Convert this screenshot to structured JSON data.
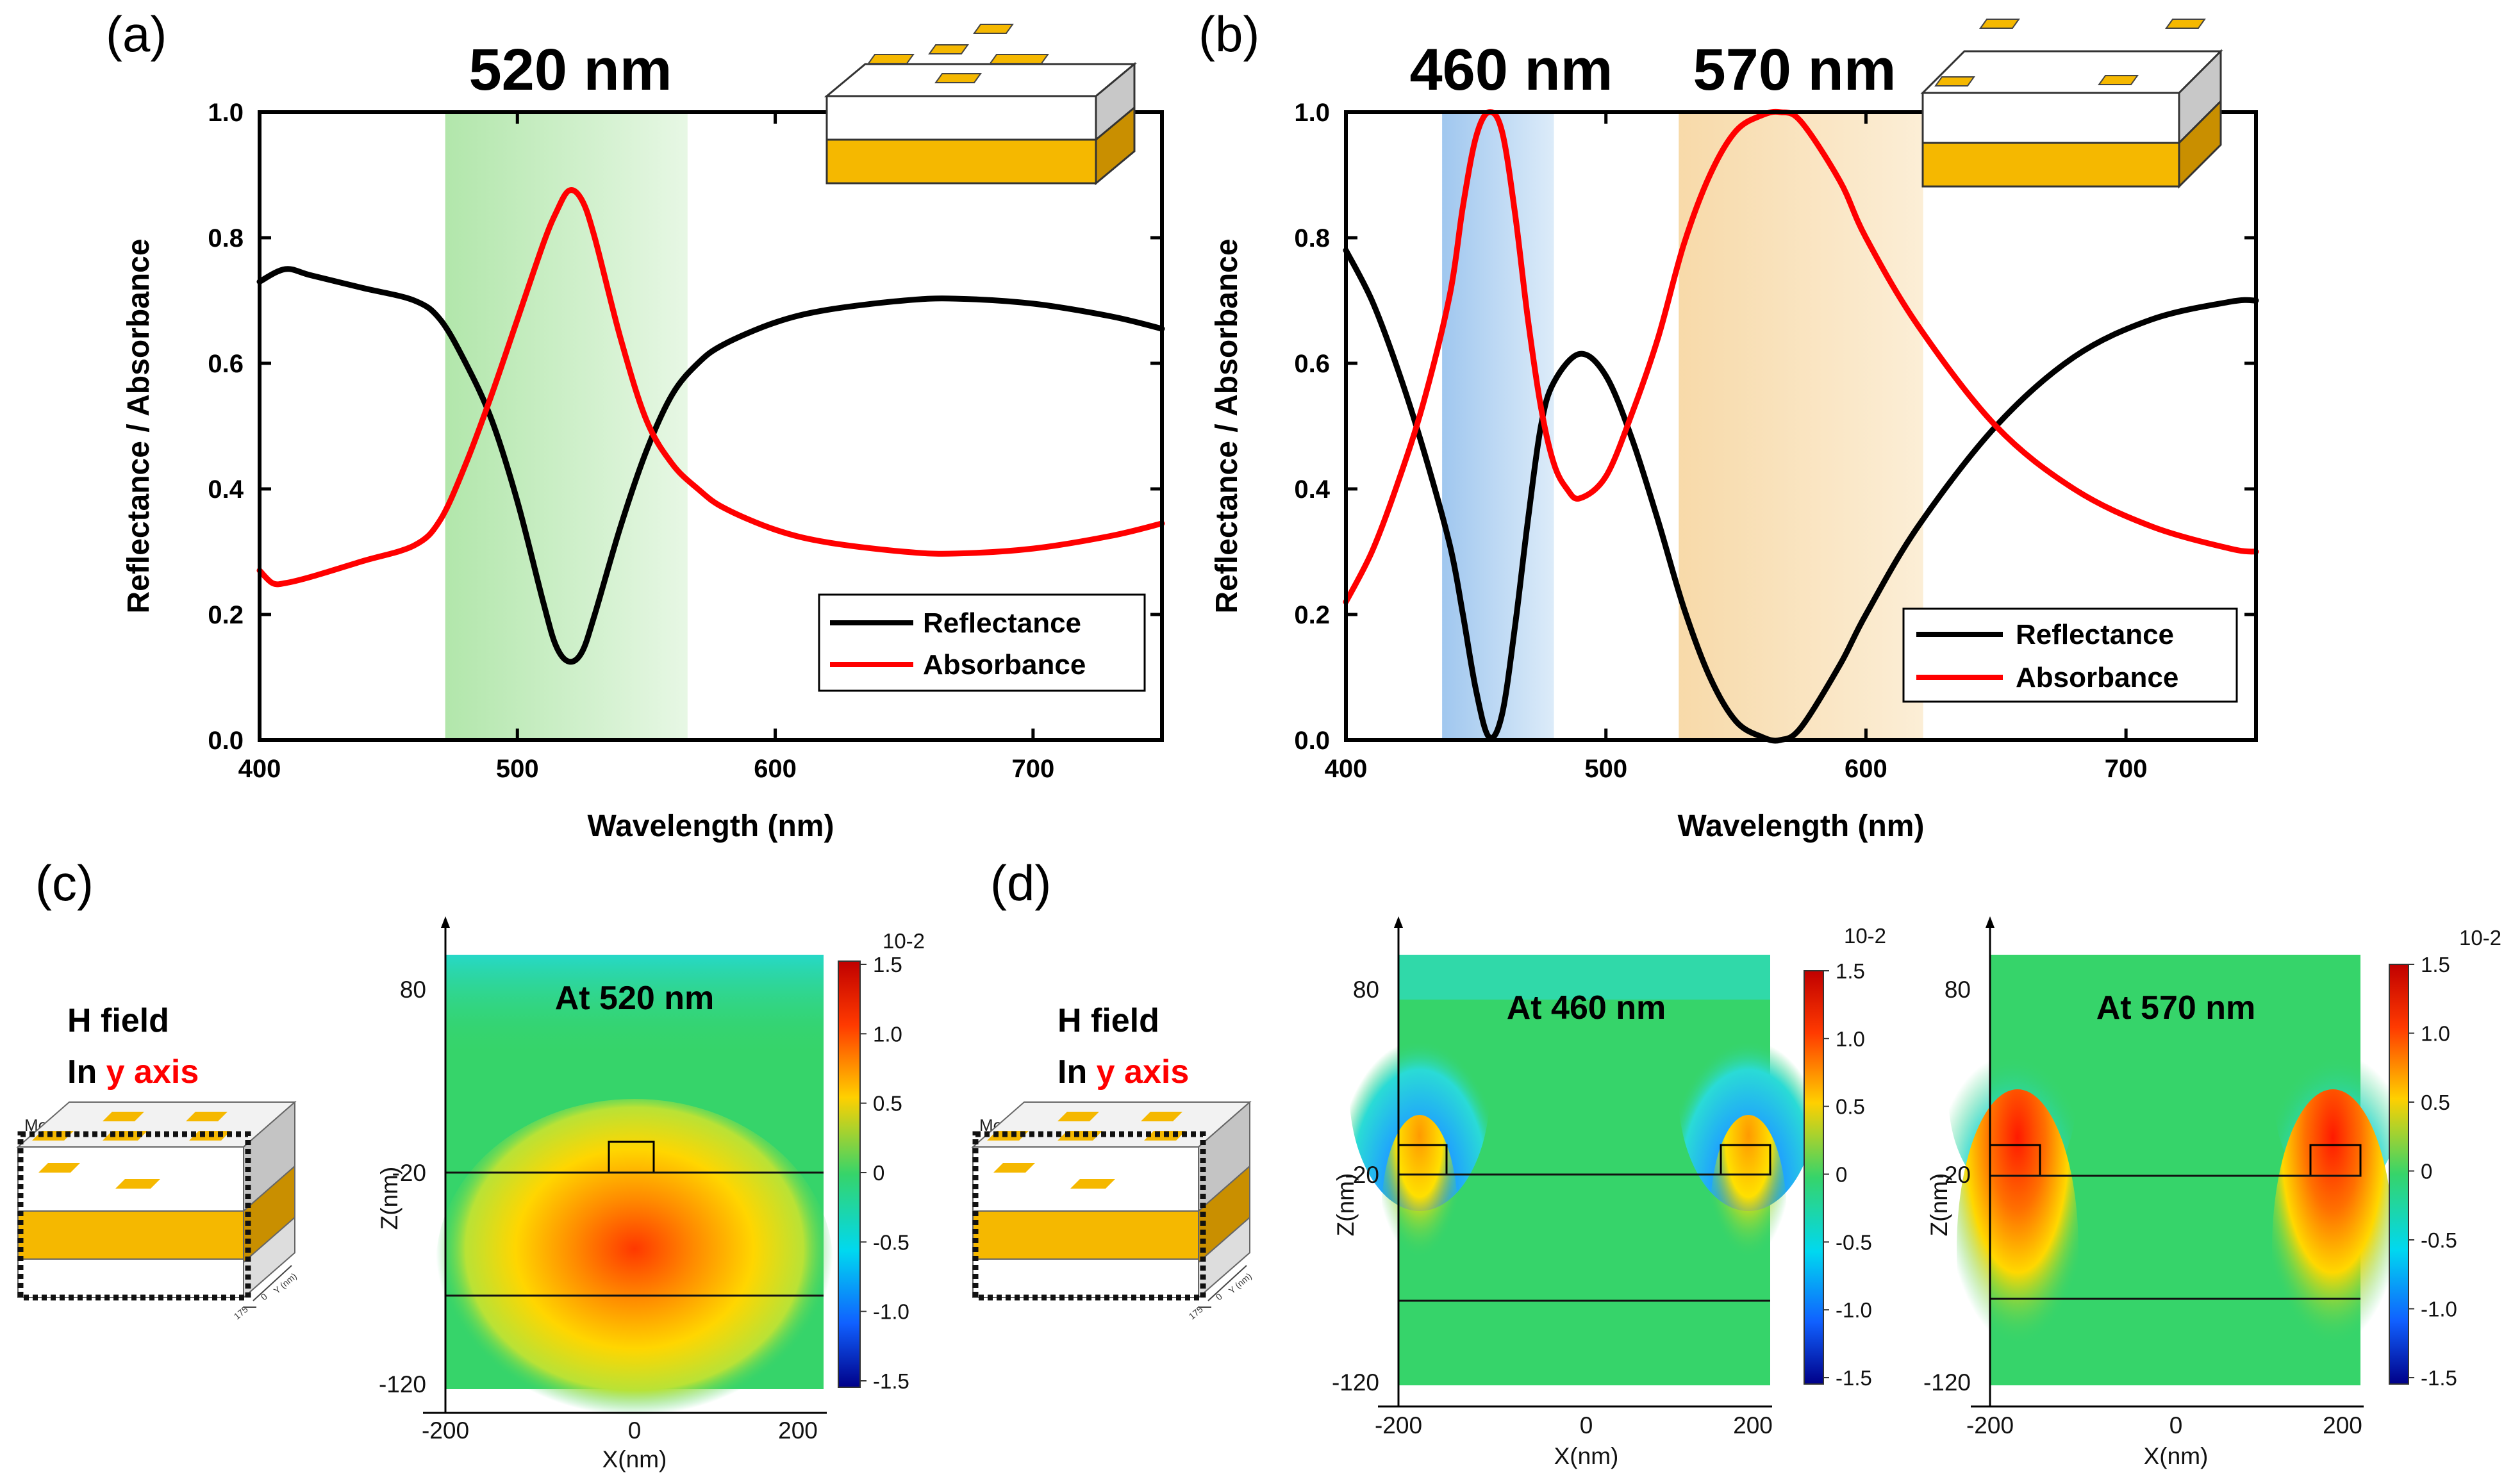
{
  "colors": {
    "reflectance": "#000000",
    "absorbance": "#ff0000",
    "green_band": "#b7e8b2",
    "blue_band": "#a9cdf0",
    "orange_band": "#f8dcaa",
    "gold": "#f5b800",
    "map_bg": "#35d46a"
  },
  "panels": {
    "a_label": "(a)",
    "b_label": "(b)",
    "c_label": "(c)",
    "d_label": "(d)"
  },
  "chart_data": [
    {
      "id": "a",
      "type": "line",
      "xlabel": "Wavelength (nm)",
      "ylabel": "Reflectance / Absorbance",
      "xlim": [
        400,
        750
      ],
      "ylim": [
        0.0,
        1.0
      ],
      "xticks": [
        400,
        500,
        600,
        700
      ],
      "xtick_labels": [
        "400",
        "500",
        "600",
        "700"
      ],
      "yticks": [
        0.0,
        0.2,
        0.4,
        0.6,
        0.8,
        1.0
      ],
      "ytick_labels": [
        "0.0",
        "0.2",
        "0.4",
        "0.6",
        "0.8",
        "1.0"
      ],
      "bands": [
        {
          "label": "520 nm",
          "from": 472,
          "to": 566,
          "color": "#b7e8b2"
        }
      ],
      "legend": {
        "position": "lower-right",
        "entries": [
          "Reflectance",
          "Absorbance"
        ]
      },
      "series": [
        {
          "name": "Reflectance",
          "color": "#000000",
          "x": [
            400,
            410,
            420,
            440,
            460,
            470,
            480,
            490,
            500,
            510,
            515,
            520,
            525,
            530,
            540,
            550,
            560,
            570,
            580,
            600,
            620,
            650,
            670,
            700,
            730,
            750
          ],
          "y": [
            0.73,
            0.75,
            0.74,
            0.72,
            0.7,
            0.67,
            0.6,
            0.51,
            0.38,
            0.22,
            0.15,
            0.125,
            0.14,
            0.2,
            0.34,
            0.46,
            0.55,
            0.6,
            0.63,
            0.665,
            0.685,
            0.7,
            0.703,
            0.695,
            0.675,
            0.655
          ]
        },
        {
          "name": "Absorbance",
          "color": "#ff0000",
          "x": [
            400,
            405,
            410,
            420,
            440,
            460,
            470,
            480,
            490,
            500,
            510,
            515,
            520,
            525,
            530,
            540,
            550,
            560,
            570,
            580,
            600,
            620,
            650,
            670,
            700,
            730,
            750
          ],
          "y": [
            0.27,
            0.25,
            0.25,
            0.26,
            0.285,
            0.31,
            0.35,
            0.44,
            0.55,
            0.67,
            0.79,
            0.84,
            0.875,
            0.86,
            0.8,
            0.64,
            0.51,
            0.44,
            0.4,
            0.37,
            0.335,
            0.315,
            0.3,
            0.297,
            0.305,
            0.325,
            0.345
          ]
        }
      ]
    },
    {
      "id": "b",
      "type": "line",
      "xlabel": "Wavelength (nm)",
      "ylabel": "Reflectance / Absorbance",
      "xlim": [
        400,
        750
      ],
      "ylim": [
        0.0,
        1.0
      ],
      "xticks": [
        400,
        500,
        600,
        700
      ],
      "xtick_labels": [
        "400",
        "500",
        "600",
        "700"
      ],
      "yticks": [
        0.0,
        0.2,
        0.4,
        0.6,
        0.8,
        1.0
      ],
      "ytick_labels": [
        "0.0",
        "0.2",
        "0.4",
        "0.6",
        "0.8",
        "1.0"
      ],
      "bands": [
        {
          "label": "460 nm",
          "from": 437,
          "to": 480,
          "color": "#a9cdf0"
        },
        {
          "label": "570 nm",
          "from": 528,
          "to": 622,
          "color": "#f8dcaa"
        }
      ],
      "legend": {
        "position": "lower-right",
        "entries": [
          "Reflectance",
          "Absorbance"
        ]
      },
      "series": [
        {
          "name": "Reflectance",
          "color": "#000000",
          "x": [
            400,
            410,
            420,
            430,
            440,
            445,
            450,
            455,
            460,
            465,
            470,
            475,
            480,
            490,
            500,
            510,
            520,
            530,
            540,
            550,
            560,
            567,
            575,
            590,
            600,
            620,
            650,
            680,
            710,
            740,
            750
          ],
          "y": [
            0.78,
            0.7,
            0.59,
            0.46,
            0.31,
            0.2,
            0.08,
            0.005,
            0.04,
            0.18,
            0.35,
            0.5,
            0.57,
            0.615,
            0.58,
            0.48,
            0.35,
            0.21,
            0.1,
            0.03,
            0.005,
            0.0,
            0.02,
            0.12,
            0.2,
            0.34,
            0.5,
            0.61,
            0.67,
            0.698,
            0.7
          ]
        },
        {
          "name": "Absorbance",
          "color": "#ff0000",
          "x": [
            400,
            410,
            420,
            430,
            440,
            445,
            450,
            455,
            460,
            465,
            470,
            475,
            480,
            485,
            490,
            500,
            510,
            520,
            530,
            540,
            550,
            560,
            567,
            575,
            590,
            600,
            620,
            650,
            680,
            710,
            740,
            750
          ],
          "y": [
            0.22,
            0.3,
            0.41,
            0.54,
            0.71,
            0.85,
            0.96,
            1.0,
            0.97,
            0.84,
            0.67,
            0.53,
            0.44,
            0.4,
            0.385,
            0.42,
            0.52,
            0.64,
            0.79,
            0.9,
            0.97,
            0.995,
            1.0,
            0.985,
            0.89,
            0.8,
            0.66,
            0.5,
            0.4,
            0.34,
            0.305,
            0.3
          ]
        }
      ]
    }
  ],
  "chart_a": {
    "band_label": "520 nm",
    "legend_reflectance": "Reflectance",
    "legend_absorbance": "Absorbance"
  },
  "chart_b": {
    "band1_label": "460 nm",
    "band2_label": "570 nm",
    "legend_reflectance": "Reflectance",
    "legend_absorbance": "Absorbance"
  },
  "field_maps": {
    "h_field_line1": "H field",
    "h_field_line2_prefix": "In ",
    "h_field_line2_axis": "y axis",
    "monitor_label": "Monitor",
    "schematic_axis_labels": [
      "175",
      "0",
      "Y (nm)"
    ],
    "x_label": "X(nm)",
    "z_label": "Z(nm)",
    "x_ticks": [
      "-200",
      "0",
      "200"
    ],
    "z_ticks": [
      "80",
      "-20",
      "-120"
    ],
    "colorbar_exponent": "10-2",
    "colorbar_ticks": [
      "1.5",
      "1.0",
      "0.5",
      "0",
      "-0.5",
      "-1.0",
      "-1.5"
    ],
    "maps": [
      {
        "id": "c",
        "title": "At 520 nm"
      },
      {
        "id": "d1",
        "title": "At 460 nm"
      },
      {
        "id": "d2",
        "title": "At 570 nm"
      }
    ]
  }
}
